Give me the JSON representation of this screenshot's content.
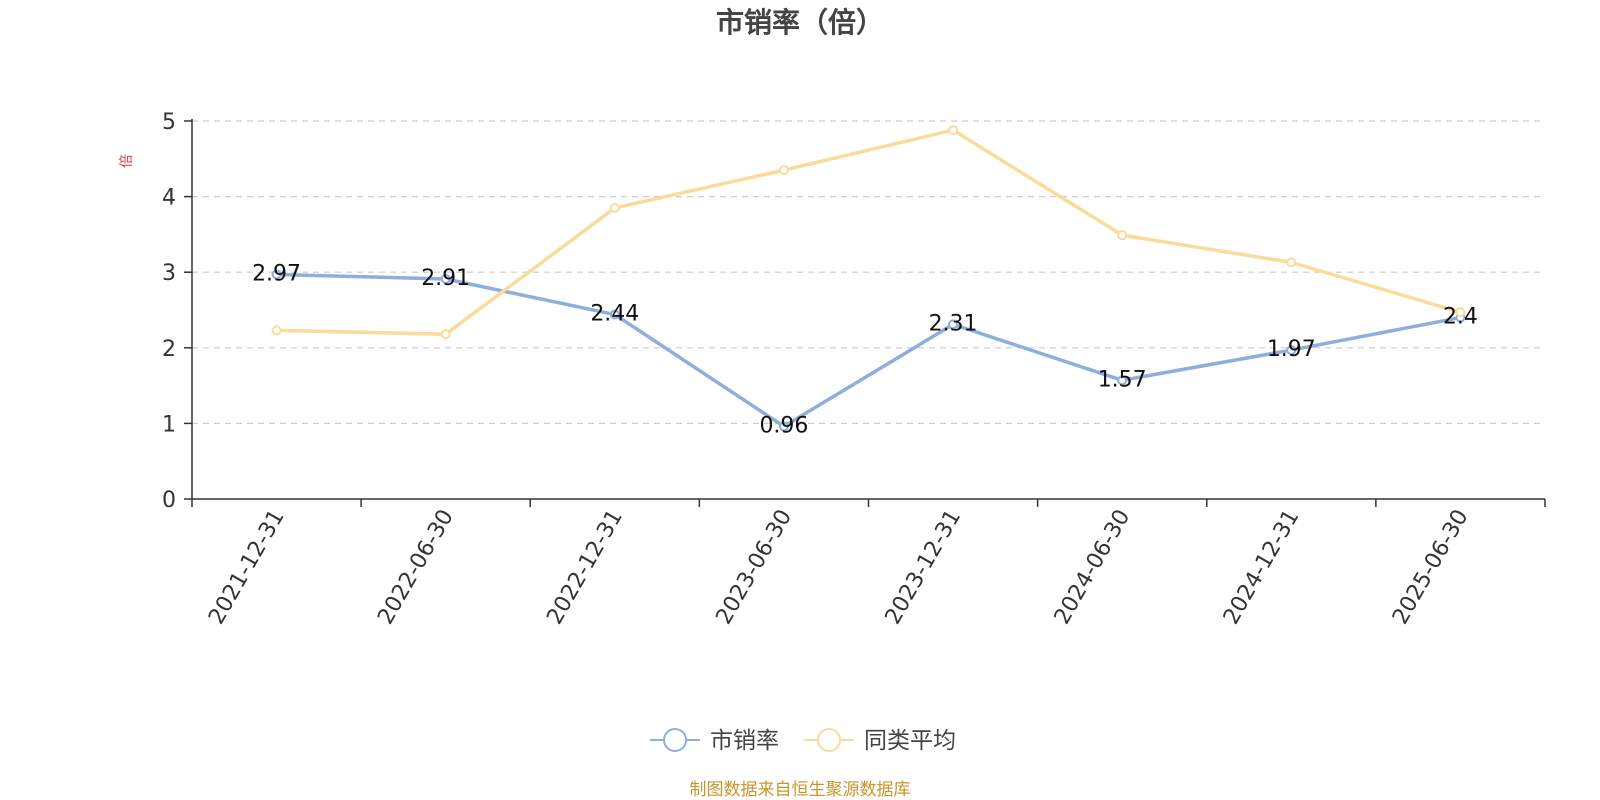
{
  "chart_data": {
    "type": "line",
    "title": "市销率（倍）",
    "ylabel": "倍",
    "xlabel": "",
    "categories": [
      "2021-12-31",
      "2022-06-30",
      "2022-12-31",
      "2023-06-30",
      "2023-12-31",
      "2024-06-30",
      "2024-12-31",
      "2025-06-30"
    ],
    "ylim": [
      0,
      5
    ],
    "yticks": [
      "0",
      "1",
      "2",
      "3",
      "4",
      "5"
    ],
    "grid": true,
    "legend_position": "bottom-center",
    "series": [
      {
        "name": "市销率",
        "color": "#8eaedd",
        "values": [
          2.97,
          2.91,
          2.44,
          0.96,
          2.31,
          1.57,
          1.97,
          2.4
        ],
        "labels": [
          "2.97",
          "2.91",
          "2.44",
          "0.96",
          "2.31",
          "1.57",
          "1.97",
          "2.4"
        ]
      },
      {
        "name": "同类平均",
        "color": "#fadb9a",
        "values": [
          2.23,
          2.18,
          3.85,
          4.35,
          4.88,
          3.49,
          3.13,
          2.47
        ]
      }
    ],
    "footer": "制图数据来自恒生聚源数据库",
    "colors": {
      "axis": "#333333",
      "grid": "#cccccc",
      "ylabel": "#e4393c",
      "footer": "#c8962c",
      "title": "#444444",
      "ticks": "#333333",
      "legend_text": "#444444"
    }
  }
}
